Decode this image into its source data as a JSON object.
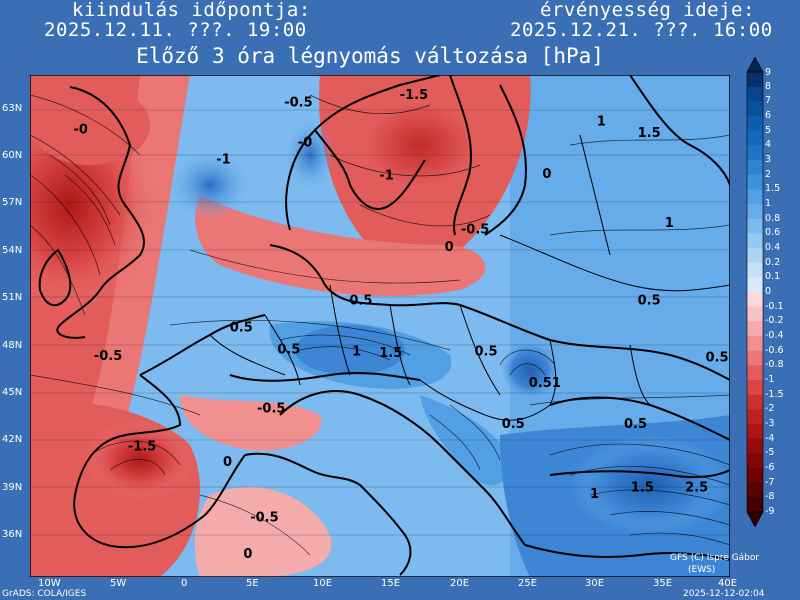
{
  "header": {
    "init_label": "kiindulás időpontja:",
    "init_value": "2025.12.11. ???. 19:00",
    "valid_label": "érvényesség ideje:",
    "valid_value": "2025.12.21. ???. 16:00"
  },
  "title": "Előző 3 óra légnyomás változása [hPa]",
  "lat_labels": [
    "63N",
    "60N",
    "57N",
    "54N",
    "51N",
    "48N",
    "45N",
    "42N",
    "39N",
    "36N"
  ],
  "lon_labels": [
    "10W",
    "5W",
    "0",
    "5E",
    "10E",
    "15E",
    "20E",
    "25E",
    "30E",
    "35E",
    "40E"
  ],
  "colorbar": {
    "labels": [
      "9",
      "8",
      "7",
      "6",
      "5",
      "4",
      "3",
      "2",
      "1.5",
      "1",
      "0.8",
      "0.6",
      "0.4",
      "0.2",
      "0.1",
      "0",
      "-0.1",
      "-0.2",
      "-0.4",
      "-0.6",
      "-0.8",
      "-1",
      "-1.5",
      "-2",
      "-3",
      "-4",
      "-5",
      "-6",
      "-7",
      "-8",
      "-9"
    ],
    "colors": [
      "#08306b",
      "#08458f",
      "#0a519c",
      "#0d5fae",
      "#1467be",
      "#1f74c8",
      "#2c84d4",
      "#3d92dc",
      "#519fe4",
      "#66acea",
      "#7dbaef",
      "#95c8f3",
      "#aed5f6",
      "#c5e1f9",
      "#d8ebfb",
      "#fbd9d9",
      "#f7c3c3",
      "#f4abab",
      "#f09090",
      "#eb7676",
      "#e35c5c",
      "#d94444",
      "#cc3131",
      "#bd2222",
      "#aa1515",
      "#960c0c",
      "#820606",
      "#6e0303",
      "#5a0101",
      "#460000"
    ]
  },
  "map_labels": [
    {
      "text": "-0.5",
      "lon": 6.5,
      "lat": 63.2
    },
    {
      "text": "-1.5",
      "lon": 15,
      "lat": 63.7
    },
    {
      "text": "-0",
      "lon": -9,
      "lat": 61.5
    },
    {
      "text": "-0",
      "lon": 7.5,
      "lat": 60.7
    },
    {
      "text": "-1",
      "lon": 1.5,
      "lat": 59.6
    },
    {
      "text": "-1",
      "lon": 13.5,
      "lat": 58.6
    },
    {
      "text": "1.5",
      "lon": 32.5,
      "lat": 61.3
    },
    {
      "text": "1",
      "lon": 29.5,
      "lat": 62
    },
    {
      "text": "0",
      "lon": 25.5,
      "lat": 58.7
    },
    {
      "text": "1",
      "lon": 34.5,
      "lat": 55.6
    },
    {
      "text": "0",
      "lon": 18.3,
      "lat": 54.1
    },
    {
      "text": "-0.5",
      "lon": 19.5,
      "lat": 55.2
    },
    {
      "text": "0.5",
      "lon": 11.3,
      "lat": 50.7
    },
    {
      "text": "0.5",
      "lon": 32.5,
      "lat": 50.7
    },
    {
      "text": "0.5",
      "lon": 2.5,
      "lat": 49
    },
    {
      "text": "-0.5",
      "lon": -7.5,
      "lat": 47.2
    },
    {
      "text": "0.5",
      "lon": 6,
      "lat": 47.6
    },
    {
      "text": "1",
      "lon": 11.5,
      "lat": 47.5
    },
    {
      "text": "1.5",
      "lon": 13.5,
      "lat": 47.4
    },
    {
      "text": "0.5",
      "lon": 20.5,
      "lat": 47.5
    },
    {
      "text": "0.5",
      "lon": 37.5,
      "lat": 47.1
    },
    {
      "text": "-0.5",
      "lon": 4.5,
      "lat": 43.9
    },
    {
      "text": "0.51",
      "lon": 24.5,
      "lat": 45.5
    },
    {
      "text": "0.5",
      "lon": 22.5,
      "lat": 42.9
    },
    {
      "text": "0.5",
      "lon": 31.5,
      "lat": 42.9
    },
    {
      "text": "-1.5",
      "lon": -5,
      "lat": 41.5
    },
    {
      "text": "0",
      "lon": 2,
      "lat": 40.5
    },
    {
      "text": "1",
      "lon": 29,
      "lat": 38.5
    },
    {
      "text": "1.5",
      "lon": 32,
      "lat": 38.9
    },
    {
      "text": "2.5",
      "lon": 36,
      "lat": 38.9
    },
    {
      "text": "-0.5",
      "lon": 4,
      "lat": 37
    },
    {
      "text": "0",
      "lon": 3.5,
      "lat": 34.7
    }
  ],
  "footer": {
    "credit_line1": "GFS (C) Ispre Gábor",
    "credit_line2": "(EWS)",
    "grads": "GrADS: COLA/IGES",
    "timestamp": "2025-12-12-02:04"
  }
}
